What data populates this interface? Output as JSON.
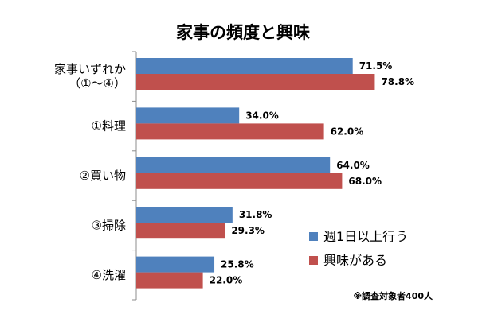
{
  "chart_data": {
    "type": "bar",
    "orientation": "horizontal",
    "title": "家事の頻度と興味",
    "categories": [
      "家事いずれか\n（①～④）",
      "①料理",
      "②買い物",
      "③掃除",
      "④洗濯"
    ],
    "series": [
      {
        "name": "週1日以上行う",
        "values": [
          71.5,
          34.0,
          64.0,
          31.8,
          25.8
        ],
        "labels": [
          "71.5%",
          "34.0%",
          "64.0%",
          "31.8%",
          "25.8%"
        ],
        "color": "#4f81bd"
      },
      {
        "name": "興味がある",
        "values": [
          78.8,
          62.0,
          68.0,
          29.3,
          22.0
        ],
        "labels": [
          "78.8%",
          "62.0%",
          "68.0%",
          "29.3%",
          "22.0%"
        ],
        "color": "#c0504d"
      }
    ],
    "xlim": [
      0,
      100
    ],
    "grid": false,
    "legend_position": "bottom-right",
    "note": "※調査対象者400人"
  }
}
